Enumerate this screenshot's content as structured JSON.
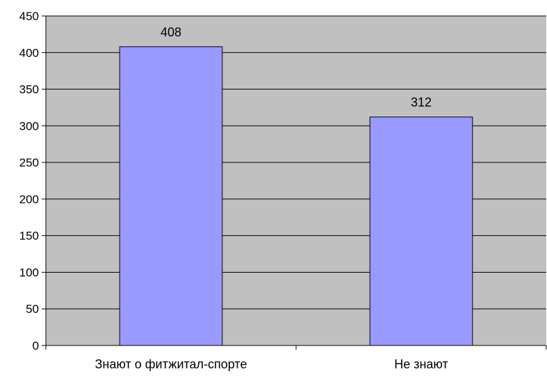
{
  "chart_data": {
    "type": "bar",
    "categories": [
      "Знают о фитжитал-спорте",
      "Не знают"
    ],
    "values": [
      408,
      312
    ],
    "data_labels": [
      "408",
      "312"
    ],
    "ylim": [
      0,
      450
    ],
    "y_ticks": [
      0,
      50,
      100,
      150,
      200,
      250,
      300,
      350,
      400,
      450
    ],
    "y_tick_labels": [
      "0",
      "50",
      "100",
      "150",
      "200",
      "250",
      "300",
      "350",
      "400",
      "450"
    ],
    "grid": true,
    "legend": "none",
    "colors": {
      "plot_background": "#c0c0c0",
      "bar_fill": "#9999ff",
      "bar_stroke": "#000000",
      "gridline": "#000000"
    }
  }
}
